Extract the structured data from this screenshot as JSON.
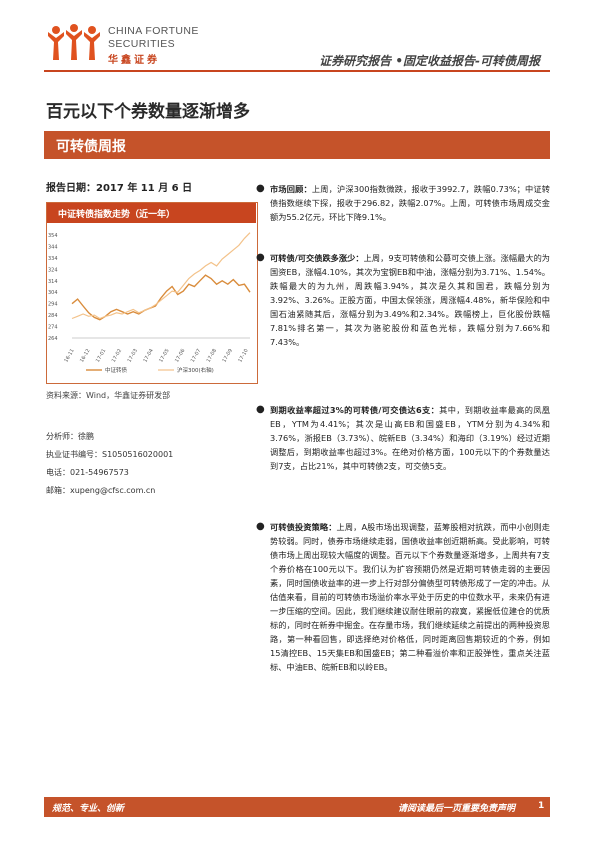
{
  "header": {
    "brand_en_line1": "CHINA FORTUNE",
    "brand_en_line2": "SECURITIES",
    "brand_cn": "华鑫证券",
    "category": "证券研究报告 •固定收益报告-可转债周报",
    "logo_icon": "three-figures-logo-icon",
    "accent_color": "#c8451f"
  },
  "main": {
    "title": "百元以下个券数量逐渐增多",
    "banner": "可转债周报"
  },
  "sidebar": {
    "report_date": "报告日期：2017 年 11 月 6 日",
    "chart_title": "中证转债指数走势（近一年）",
    "source": "资料来源：Wind，华鑫证券研发部",
    "analyst": "分析师：徐鹏",
    "license": "执业证书编号：S1050516020001",
    "phone": "电话：021-54967573",
    "email": "邮箱：xupeng@cfsc.com.cn"
  },
  "chart_data": {
    "type": "line",
    "title": "中证转债指数走势（近一年）",
    "y_tick_labels": [
      "354",
      "344",
      "334",
      "324",
      "314",
      "304",
      "294",
      "284",
      "274",
      "264"
    ],
    "x_tick_labels": [
      "16-11",
      "16-12",
      "17-01",
      "17-02",
      "17-03",
      "17-04",
      "17-05",
      "17-06",
      "17-07",
      "17-08",
      "17-09",
      "17-10"
    ],
    "legend": [
      "中证转债",
      "沪深300(右轴)"
    ],
    "series": [
      {
        "name": "中证转债",
        "color": "#d98c3c",
        "values": [
          294,
          298,
          292,
          286,
          282,
          280,
          283,
          287,
          289,
          287,
          285,
          287,
          285,
          288,
          290,
          292,
          299,
          305,
          309,
          302,
          305,
          311,
          309,
          314,
          319,
          316,
          311,
          314,
          311,
          315,
          310,
          311,
          304
        ]
      },
      {
        "name": "沪深300(右轴)",
        "color": "#f3c28a",
        "values": [
          281,
          283,
          285,
          283,
          284,
          281,
          283,
          284,
          286,
          285,
          287,
          289,
          286,
          288,
          290,
          293,
          297,
          301,
          305,
          304,
          310,
          316,
          320,
          323,
          327,
          330,
          327,
          333,
          337,
          341,
          345,
          351,
          356
        ]
      }
    ]
  },
  "bullets": [
    {
      "head": "市场回顾：",
      "text": "上周，沪深300指数微跌，报收于3992.7，跌幅0.73%；中证转债指数继续下探，报收于296.82，跌幅2.07%。上周，可转债市场周成交金额为55.2亿元，环比下降9.1%。"
    },
    {
      "head": "可转债/可交债跌多涨少：",
      "text": "上周，9支可转债和公募可交债上涨。涨幅最大的为国资EB，涨幅4.10%，其次为宝钢EB和中油，涨幅分别为3.71%、1.54%。跌幅最大的为九州，周跌幅3.94%，其次是久其和国君，跌幅分别为3.92%、3.26%。正股方面，中国太保领涨，周涨幅4.48%，新华保险和中国石油紧随其后，涨幅分别为3.49%和2.34%。跌幅榜上，巨化股份跌幅7.81%排名第一，其次为骆驼股份和蓝色光标，跌幅分别为7.66%和7.43%。"
    },
    {
      "head": "到期收益率超过3%的可转债/可交债达6支：",
      "text": "其中，到期收益率最高的凤凰EB，YTM为4.41%；其次是山高EB和国盛EB，YTM分别为4.34%和3.76%，浙报EB（3.73%）、皖新EB（3.34%）和海印（3.19%）经过近期调整后，到期收益率也超过3%。在绝对价格方面，100元以下的个券数量达到7支，占比21%，其中可转债2支，可交债5支。"
    },
    {
      "head": "可转债投资策略：",
      "text": "上周，A股市场出现调整，蓝筹股相对抗跌，而中小创则走势较弱。同时，债券市场继续走弱，国债收益率创近期新高。受此影响，可转债市场上周出现较大幅度的调整。百元以下个券数量逐渐增多，上周共有7支个券价格在100元以下。我们认为扩容预期仍然是近期可转债走弱的主要因素，同时国债收益率的进一步上行对部分偏债型可转债形成了一定的冲击。从估值来看，目前的可转债市场溢价率水平处于历史的中位数水平，未来仍有进一步压缩的空间。因此，我们继续建议耐住眼前的寂寞，紧握低位建仓的优质标的，同时在新券中掘金。在存量市场，我们继续延续之前提出的两种投资思路，第一种看回售，即选择绝对价格低，同时距离回售期较近的个券，例如15清控EB、15天集EB和国盛EB；第二种看溢价率和正股弹性，重点关注蓝标、中油EB、皖新EB和以岭EB。"
    }
  ],
  "footer": {
    "left": "规范、专业、创新",
    "right": "请阅读最后一页重要免责声明",
    "page": "1"
  }
}
